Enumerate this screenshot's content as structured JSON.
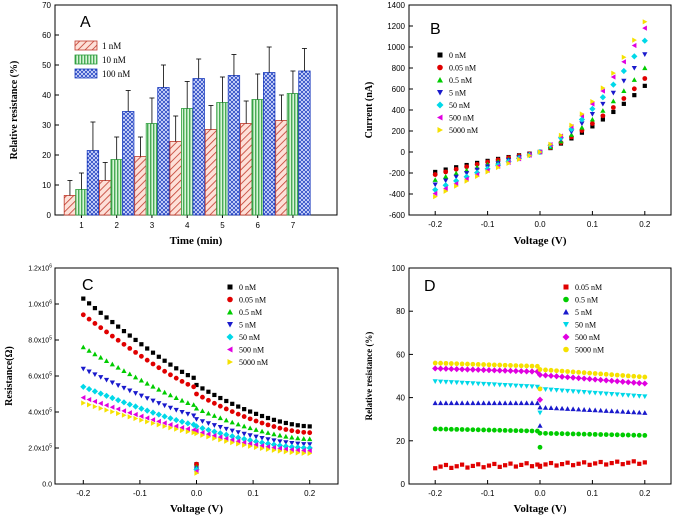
{
  "chart_data": [
    {
      "panel": "A",
      "type": "bar",
      "xlabel": "Time (min)",
      "ylabel": "Relative resistance (%)",
      "categories": [
        "1",
        "2",
        "3",
        "4",
        "5",
        "6",
        "7"
      ],
      "ylim": [
        0,
        70
      ],
      "yticks": [
        0,
        10,
        20,
        30,
        40,
        50,
        60,
        70
      ],
      "legend_position": "top-left",
      "series": [
        {
          "name": "1 nM",
          "color": "#c0392b",
          "pattern": "hatch",
          "values": [
            6.5,
            11.5,
            19.5,
            24.5,
            28.5,
            30.5,
            31.5
          ],
          "errors": [
            5,
            6,
            6.5,
            8.5,
            8,
            7.5,
            8.5
          ]
        },
        {
          "name": "10 nM",
          "color": "#2e9e3e",
          "pattern": "vertical",
          "values": [
            8.5,
            18.5,
            30.5,
            35.5,
            37.5,
            38.5,
            40.5
          ],
          "errors": [
            5.5,
            7.5,
            8.5,
            9,
            8.5,
            8.5,
            7.5
          ]
        },
        {
          "name": "100 nM",
          "color": "#1f3fbf",
          "pattern": "cross",
          "values": [
            21.5,
            34.5,
            42.5,
            45.5,
            46.5,
            47.5,
            48
          ],
          "errors": [
            9.5,
            7,
            7.5,
            6.5,
            7,
            8.5,
            7.5
          ]
        }
      ]
    },
    {
      "panel": "B",
      "type": "scatter",
      "xlabel": "Voltage (V)",
      "ylabel": "Current (nA)",
      "xlim": [
        -0.25,
        0.25
      ],
      "ylim": [
        -600,
        1400
      ],
      "xticks": [
        -0.2,
        -0.1,
        0.0,
        0.1,
        0.2
      ],
      "xtick_labels": [
        "-0.2",
        "-0.1",
        "0.0",
        "0.1",
        "0.2"
      ],
      "yticks": [
        -600,
        -400,
        -200,
        0,
        200,
        400,
        600,
        800,
        1000,
        1200,
        1400
      ],
      "x_range": [
        -0.2,
        0.2
      ],
      "legend_position": "top-left",
      "series": [
        {
          "name": "0 nM",
          "color": "#000000",
          "marker": "square",
          "y_at_min": -190,
          "y_at_max": 630
        },
        {
          "name": "0.05 nM",
          "color": "#e00000",
          "marker": "circle",
          "y_at_min": -215,
          "y_at_max": 700
        },
        {
          "name": "0.5 nM",
          "color": "#00cc00",
          "marker": "triangle-up",
          "y_at_min": -265,
          "y_at_max": 800
        },
        {
          "name": "5 nM",
          "color": "#1a1acc",
          "marker": "triangle-down",
          "y_at_min": -310,
          "y_at_max": 930
        },
        {
          "name": "50 nM",
          "color": "#00d8e8",
          "marker": "diamond",
          "y_at_min": -360,
          "y_at_max": 1060
        },
        {
          "name": "500 nM",
          "color": "#e000e0",
          "marker": "triangle-left",
          "y_at_min": -395,
          "y_at_max": 1180
        },
        {
          "name": "5000 nM",
          "color": "#f5e100",
          "marker": "triangle-right",
          "y_at_min": -425,
          "y_at_max": 1240
        }
      ]
    },
    {
      "panel": "C",
      "type": "scatter",
      "xlabel": "Voltage (V)",
      "ylabel": "Resistance(Ω)",
      "xlim": [
        -0.25,
        0.25
      ],
      "ylim": [
        0,
        1200000
      ],
      "xticks": [
        -0.2,
        -0.1,
        0.0,
        0.1,
        0.2
      ],
      "xtick_labels": [
        "-0.2",
        "-0.1",
        "0.0",
        "0.1",
        "0.2"
      ],
      "yticks": [
        0,
        200000,
        400000,
        600000,
        800000,
        1000000,
        1200000
      ],
      "ytick_mantissas": [
        "0.0",
        "2.0x10",
        "4.0x10",
        "6.0x10",
        "8.0x10",
        "1.0x10",
        "1.2x10"
      ],
      "ytick_exponents": [
        "",
        "5",
        "5",
        "5",
        "5",
        "6",
        "6"
      ],
      "legend_position": "top-right",
      "series": [
        {
          "name": "0 nM",
          "color": "#000000",
          "marker": "square",
          "left_start": 1030000,
          "left_end": 590000,
          "right_start": 550000,
          "right_end": 320000,
          "center": 110000
        },
        {
          "name": "0.05 nM",
          "color": "#e00000",
          "marker": "circle",
          "left_start": 940000,
          "left_end": 540000,
          "right_start": 500000,
          "right_end": 285000,
          "center": 110000
        },
        {
          "name": "0.5 nM",
          "color": "#00cc00",
          "marker": "triangle-up",
          "left_start": 760000,
          "left_end": 440000,
          "right_start": 420000,
          "right_end": 250000,
          "center": 95000
        },
        {
          "name": "5 nM",
          "color": "#1a1acc",
          "marker": "triangle-down",
          "left_start": 640000,
          "left_end": 380000,
          "right_start": 360000,
          "right_end": 220000,
          "center": 85000
        },
        {
          "name": "50 nM",
          "color": "#00d8e8",
          "marker": "diamond",
          "left_start": 540000,
          "left_end": 330000,
          "right_start": 320000,
          "right_end": 200000,
          "center": 80000
        },
        {
          "name": "500 nM",
          "color": "#e000e0",
          "marker": "triangle-left",
          "left_start": 480000,
          "left_end": 300000,
          "right_start": 295000,
          "right_end": 185000,
          "center": 70000
        },
        {
          "name": "5000 nM",
          "color": "#f5e100",
          "marker": "triangle-right",
          "left_start": 450000,
          "left_end": 285000,
          "right_start": 280000,
          "right_end": 170000,
          "center": 60000
        }
      ]
    },
    {
      "panel": "D",
      "type": "scatter",
      "xlabel": "Voltage (V)",
      "ylabel": "Relative resistance (%)",
      "xlim": [
        -0.25,
        0.25
      ],
      "ylim": [
        0,
        100
      ],
      "xticks": [
        -0.2,
        -0.1,
        0.0,
        0.1,
        0.2
      ],
      "xtick_labels": [
        "-0.2",
        "-0.1",
        "0.0",
        "0.1",
        "0.2"
      ],
      "yticks": [
        0,
        20,
        40,
        60,
        80,
        100
      ],
      "legend_position": "top-right",
      "series": [
        {
          "name": "0.05 nM",
          "color": "#e00000",
          "marker": "square",
          "left_start": 8,
          "left_end": 9,
          "right_start": 9,
          "right_end": 10,
          "center": 8
        },
        {
          "name": "0.5 nM",
          "color": "#00cc00",
          "marker": "circle",
          "left_start": 25.5,
          "left_end": 24.5,
          "right_start": 23.5,
          "right_end": 22.5,
          "center": 17
        },
        {
          "name": "5 nM",
          "color": "#1a1acc",
          "marker": "triangle-up",
          "left_start": 37.5,
          "left_end": 37.5,
          "right_start": 35.5,
          "right_end": 33,
          "center": 27
        },
        {
          "name": "50 nM",
          "color": "#00d8e8",
          "marker": "triangle-down",
          "left_start": 47.5,
          "left_end": 45,
          "right_start": 44,
          "right_end": 40.5,
          "center": 33
        },
        {
          "name": "500 nM",
          "color": "#e000e0",
          "marker": "diamond",
          "left_start": 53.5,
          "left_end": 52,
          "right_start": 50.5,
          "right_end": 46.5,
          "center": 39
        },
        {
          "name": "5000 nM",
          "color": "#f5e100",
          "marker": "circle",
          "left_start": 56,
          "left_end": 54.5,
          "right_start": 53,
          "right_end": 49.5,
          "center": 44
        }
      ]
    }
  ]
}
